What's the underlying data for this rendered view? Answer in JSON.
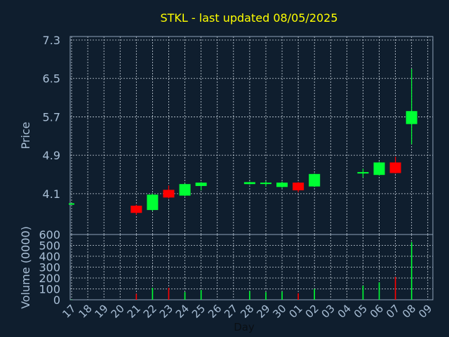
{
  "colors": {
    "background": "#0f1e2e",
    "panel_border": "#8fa3b8",
    "grid": "#c8d2dc",
    "title": "#ffff00",
    "label": "#a9bfd6",
    "up": "#00ff33",
    "down": "#ff0000"
  },
  "chart_data": [
    {
      "type": "candlestick",
      "title": "STKL - last updated 08/05/2025",
      "ylabel": "Price",
      "ylim": [
        3.25,
        7.3
      ],
      "yticks": [
        "7.3",
        "6.5",
        "5.7",
        "4.9",
        "4.1"
      ],
      "x_ticks": [
        "17",
        "18",
        "19",
        "20",
        "21",
        "22",
        "23",
        "24",
        "25",
        "26",
        "27",
        "28",
        "29",
        "30",
        "01",
        "02",
        "03",
        "04",
        "05",
        "06",
        "07",
        "08",
        "09"
      ],
      "grid": true,
      "candles": [
        {
          "day": "17",
          "open": 3.9,
          "close": 3.9,
          "high": 3.9,
          "low": 3.9
        },
        {
          "day": "21",
          "open": 3.85,
          "close": 3.7,
          "high": 3.87,
          "low": 3.66
        },
        {
          "day": "22",
          "open": 3.76,
          "close": 4.08,
          "high": 4.1,
          "low": 3.74
        },
        {
          "day": "23",
          "open": 4.18,
          "close": 4.02,
          "high": 4.27,
          "low": 4.0
        },
        {
          "day": "24",
          "open": 4.06,
          "close": 4.3,
          "high": 4.31,
          "low": 4.05
        },
        {
          "day": "25",
          "open": 4.26,
          "close": 4.33,
          "high": 4.34,
          "low": 4.17
        },
        {
          "day": "28",
          "open": 4.3,
          "close": 4.34,
          "high": 4.35,
          "low": 4.29
        },
        {
          "day": "29",
          "open": 4.31,
          "close": 4.33,
          "high": 4.36,
          "low": 4.25
        },
        {
          "day": "30",
          "open": 4.24,
          "close": 4.33,
          "high": 4.35,
          "low": 4.22
        },
        {
          "day": "01",
          "open": 4.33,
          "close": 4.17,
          "high": 4.34,
          "low": 4.13
        },
        {
          "day": "02",
          "open": 4.25,
          "close": 4.51,
          "high": 4.52,
          "low": 4.24
        },
        {
          "day": "05",
          "open": 4.52,
          "close": 4.55,
          "high": 4.62,
          "low": 4.44
        },
        {
          "day": "06",
          "open": 4.49,
          "close": 4.75,
          "high": 4.76,
          "low": 4.48
        },
        {
          "day": "07",
          "open": 4.75,
          "close": 4.53,
          "high": 4.87,
          "low": 4.52
        },
        {
          "day": "08",
          "open": 5.55,
          "close": 5.82,
          "high": 6.7,
          "low": 5.13
        }
      ]
    },
    {
      "type": "bar",
      "ylabel": "Volume (0000)",
      "xlabel": "Day",
      "ylim": [
        0,
        600
      ],
      "yticks": [
        "600",
        "500",
        "400",
        "300",
        "200",
        "100",
        "0"
      ],
      "x_ticks": [
        "17",
        "18",
        "19",
        "20",
        "21",
        "22",
        "23",
        "24",
        "25",
        "26",
        "27",
        "28",
        "29",
        "30",
        "01",
        "02",
        "03",
        "04",
        "05",
        "06",
        "07",
        "08",
        "09"
      ],
      "grid": true,
      "bars": [
        {
          "day": "17",
          "value": 2,
          "direction": "up"
        },
        {
          "day": "21",
          "value": 55,
          "direction": "down"
        },
        {
          "day": "22",
          "value": 110,
          "direction": "up"
        },
        {
          "day": "23",
          "value": 110,
          "direction": "down"
        },
        {
          "day": "24",
          "value": 70,
          "direction": "up"
        },
        {
          "day": "25",
          "value": 90,
          "direction": "up"
        },
        {
          "day": "28",
          "value": 80,
          "direction": "up"
        },
        {
          "day": "29",
          "value": 70,
          "direction": "up"
        },
        {
          "day": "30",
          "value": 75,
          "direction": "up"
        },
        {
          "day": "01",
          "value": 60,
          "direction": "down"
        },
        {
          "day": "02",
          "value": 100,
          "direction": "up"
        },
        {
          "day": "05",
          "value": 130,
          "direction": "up"
        },
        {
          "day": "06",
          "value": 160,
          "direction": "up"
        },
        {
          "day": "07",
          "value": 210,
          "direction": "down"
        },
        {
          "day": "08",
          "value": 530,
          "direction": "up"
        }
      ]
    }
  ]
}
